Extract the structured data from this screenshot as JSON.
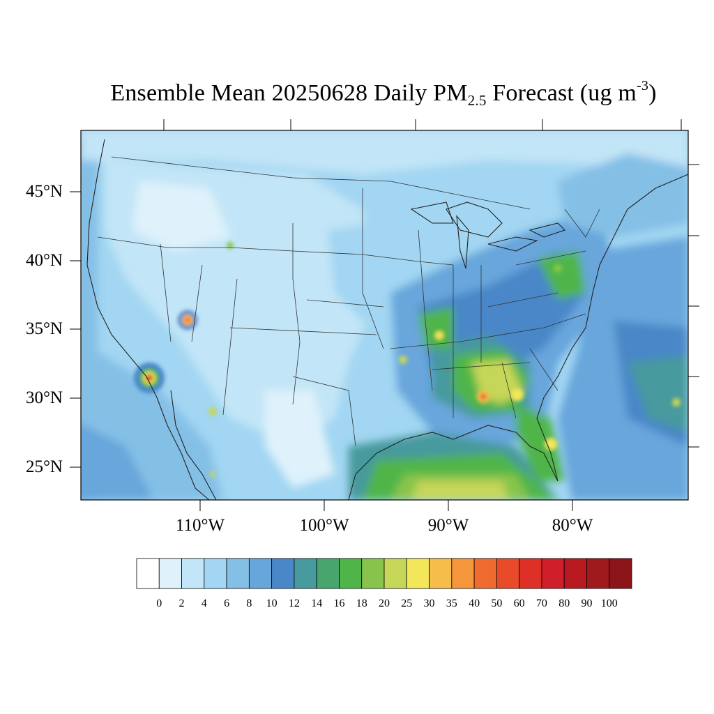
{
  "title": {
    "prefix": "Ensemble Mean 20250628 Daily PM",
    "subscript": "2.5",
    "units_prefix": " Forecast (ug m",
    "superscript": "-3",
    "units_suffix": ")"
  },
  "map": {
    "lat_labels": [
      "45°N",
      "40°N",
      "35°N",
      "30°N",
      "25°N"
    ],
    "lon_labels": [
      "110°W",
      "100°W",
      "90°W",
      "80°W"
    ],
    "colors": {
      "frame": "#000000",
      "border": "#222222",
      "ocean_base": "#7fb6e0",
      "land_base": "#c6e6f7"
    }
  },
  "colorbar": {
    "labels": [
      "0",
      "2",
      "4",
      "6",
      "8",
      "10",
      "12",
      "14",
      "16",
      "18",
      "20",
      "25",
      "30",
      "35",
      "40",
      "50",
      "60",
      "70",
      "80",
      "90",
      "100"
    ],
    "colors": [
      "#ffffff",
      "#dff2fb",
      "#c2e5f7",
      "#a2d6f2",
      "#84bfe6",
      "#67a6db",
      "#4a87c8",
      "#479a9d",
      "#47a66d",
      "#4fb548",
      "#88c44c",
      "#c6d658",
      "#f4e65a",
      "#f7bd4b",
      "#f5963d",
      "#ef6b2e",
      "#e84a2a",
      "#de3027",
      "#cf1f2a",
      "#b91a22",
      "#9e1a1d",
      "#8b1519"
    ]
  }
}
